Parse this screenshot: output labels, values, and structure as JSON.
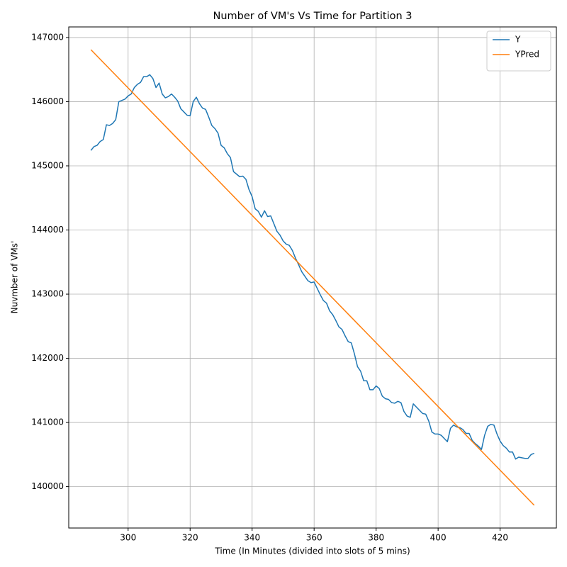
{
  "chart_data": {
    "type": "line",
    "title": "Number of VM's Vs Time for Partition 3",
    "x_label": "Time (In Minutes (divided into slots of 5 mins)",
    "y_label": "Nuvmber of VMs'",
    "xlim": [
      280.85,
      438.15
    ],
    "ylim": [
      139355,
      147165
    ],
    "xticks": [
      300,
      320,
      340,
      360,
      380,
      400,
      420
    ],
    "yticks": [
      140000,
      141000,
      142000,
      143000,
      144000,
      145000,
      146000,
      147000
    ],
    "grid": true,
    "legend": "upper right",
    "series": [
      {
        "name": "Y",
        "color": "#1f77b4",
        "x": [
          288,
          289,
          290,
          291,
          292,
          293,
          294,
          295,
          296,
          297,
          298,
          299,
          300,
          301,
          302,
          303,
          304,
          305,
          306,
          307,
          308,
          309,
          310,
          311,
          312,
          313,
          314,
          315,
          316,
          317,
          318,
          319,
          320,
          321,
          322,
          323,
          324,
          325,
          326,
          327,
          328,
          329,
          330,
          331,
          332,
          333,
          334,
          335,
          336,
          337,
          338,
          339,
          340,
          341,
          342,
          343,
          344,
          345,
          346,
          347,
          348,
          349,
          350,
          351,
          352,
          353,
          354,
          355,
          356,
          357,
          358,
          359,
          360,
          361,
          362,
          363,
          364,
          365,
          366,
          367,
          368,
          369,
          370,
          371,
          372,
          373,
          374,
          375,
          376,
          377,
          378,
          379,
          380,
          381,
          382,
          383,
          384,
          385,
          386,
          387,
          388,
          389,
          390,
          391,
          392,
          393,
          394,
          395,
          396,
          397,
          398,
          399,
          400,
          401,
          402,
          403,
          404,
          405,
          406,
          407,
          408,
          409,
          410,
          411,
          412,
          413,
          414,
          415,
          416,
          417,
          418,
          419,
          420,
          421,
          422,
          423,
          424,
          425,
          426,
          427,
          428,
          429,
          430,
          431
        ],
        "values": [
          145240,
          145300,
          145320,
          145380,
          145410,
          145640,
          145630,
          145660,
          145720,
          146000,
          146020,
          146040,
          146090,
          146120,
          146220,
          146270,
          146300,
          146390,
          146390,
          146420,
          146360,
          146220,
          146290,
          146120,
          146060,
          146080,
          146120,
          146070,
          146010,
          145890,
          145840,
          145790,
          145780,
          146000,
          146070,
          145970,
          145900,
          145880,
          145760,
          145630,
          145580,
          145510,
          145320,
          145280,
          145190,
          145130,
          144910,
          144870,
          144830,
          144840,
          144790,
          144630,
          144520,
          144330,
          144290,
          144200,
          144300,
          144210,
          144220,
          144100,
          143980,
          143920,
          143830,
          143780,
          143760,
          143680,
          143560,
          143460,
          143350,
          143280,
          143210,
          143180,
          143190,
          143090,
          142990,
          142900,
          142860,
          142740,
          142680,
          142590,
          142490,
          142450,
          142350,
          142260,
          142240,
          142070,
          141870,
          141800,
          141650,
          141650,
          141510,
          141510,
          141570,
          141530,
          141410,
          141370,
          141360,
          141310,
          141300,
          141330,
          141310,
          141170,
          141100,
          141080,
          141290,
          141240,
          141190,
          141140,
          141130,
          141020,
          140850,
          140820,
          140820,
          140800,
          140750,
          140700,
          140910,
          140960,
          140930,
          140920,
          140890,
          140830,
          140830,
          140720,
          140670,
          140630,
          140580,
          140800,
          140940,
          140970,
          140960,
          140820,
          140710,
          140640,
          140600,
          140540,
          140540,
          140430,
          140460,
          140450,
          140440,
          140440,
          140500,
          140520
        ]
      },
      {
        "name": "YPred",
        "color": "#ff7f0e",
        "x": [
          288,
          431
        ],
        "values": [
          146810,
          139710
        ]
      }
    ]
  }
}
